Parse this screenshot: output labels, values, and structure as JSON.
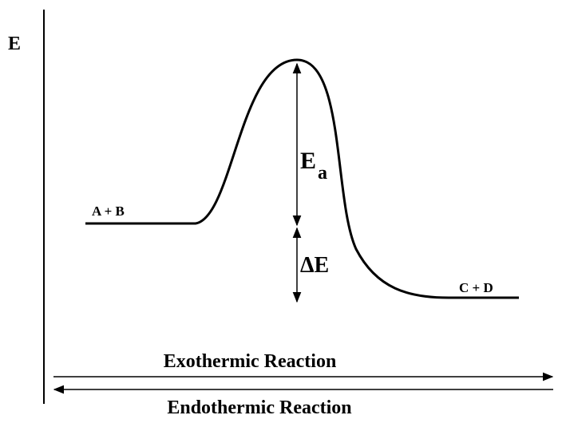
{
  "axis": {
    "label": "E"
  },
  "reactants": {
    "label": "A + B"
  },
  "products": {
    "label": "C + D"
  },
  "activation_energy": {
    "label": "E",
    "subscript": "a"
  },
  "energy_change": {
    "label": "ΔE"
  },
  "arrows": {
    "forward": "Exothermic Reaction",
    "reverse": "Endothermic Reaction"
  }
}
